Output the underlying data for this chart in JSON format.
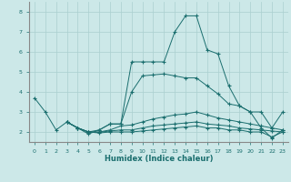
{
  "xlabel": "Humidex (Indice chaleur)",
  "xlim": [
    -0.5,
    23.5
  ],
  "ylim": [
    1.5,
    8.5
  ],
  "yticks": [
    2,
    3,
    4,
    5,
    6,
    7,
    8
  ],
  "xticks": [
    0,
    1,
    2,
    3,
    4,
    5,
    6,
    7,
    8,
    9,
    10,
    11,
    12,
    13,
    14,
    15,
    16,
    17,
    18,
    19,
    20,
    21,
    22,
    23
  ],
  "bg_color": "#cce8e8",
  "line_color": "#1a6e6e",
  "grid_color": "#aacfcf",
  "lines": [
    {
      "x": [
        0,
        1,
        2,
        3,
        4,
        5,
        6,
        7,
        8,
        9,
        10,
        11,
        12,
        13,
        14,
        15,
        16,
        17,
        18,
        19,
        20,
        21,
        22,
        23
      ],
      "y": [
        3.7,
        3.0,
        2.1,
        2.5,
        2.2,
        1.9,
        2.1,
        2.4,
        2.4,
        5.5,
        5.5,
        5.5,
        5.5,
        7.0,
        7.8,
        7.8,
        6.1,
        5.9,
        4.3,
        3.3,
        3.0,
        2.2,
        1.7,
        2.1
      ]
    },
    {
      "x": [
        3,
        4,
        5,
        6,
        7,
        8,
        9,
        10,
        11,
        12,
        13,
        14,
        15,
        16,
        17,
        18,
        19,
        20,
        21,
        22,
        23
      ],
      "y": [
        2.5,
        2.2,
        2.0,
        2.1,
        2.4,
        2.4,
        4.0,
        4.8,
        4.85,
        4.9,
        4.8,
        4.7,
        4.7,
        4.3,
        3.9,
        3.4,
        3.3,
        3.0,
        3.0,
        2.2,
        3.0
      ]
    },
    {
      "x": [
        3,
        4,
        5,
        6,
        7,
        8,
        9,
        10,
        11,
        12,
        13,
        14,
        15,
        16,
        17,
        18,
        19,
        20,
        21,
        22,
        23
      ],
      "y": [
        2.5,
        2.2,
        2.0,
        2.0,
        2.1,
        2.3,
        2.35,
        2.5,
        2.65,
        2.75,
        2.85,
        2.9,
        3.0,
        2.85,
        2.7,
        2.6,
        2.5,
        2.4,
        2.3,
        2.2,
        2.1
      ]
    },
    {
      "x": [
        3,
        4,
        5,
        6,
        7,
        8,
        9,
        10,
        11,
        12,
        13,
        14,
        15,
        16,
        17,
        18,
        19,
        20,
        21,
        22,
        23
      ],
      "y": [
        2.5,
        2.2,
        2.0,
        1.98,
        2.05,
        2.1,
        2.1,
        2.2,
        2.3,
        2.35,
        2.4,
        2.45,
        2.5,
        2.4,
        2.35,
        2.3,
        2.2,
        2.15,
        2.1,
        2.05,
        2.0
      ]
    },
    {
      "x": [
        3,
        4,
        5,
        6,
        7,
        8,
        9,
        10,
        11,
        12,
        13,
        14,
        15,
        16,
        17,
        18,
        19,
        20,
        21,
        22,
        23
      ],
      "y": [
        2.5,
        2.2,
        2.0,
        1.95,
        2.0,
        2.0,
        2.0,
        2.05,
        2.1,
        2.15,
        2.2,
        2.25,
        2.3,
        2.2,
        2.2,
        2.1,
        2.1,
        2.0,
        2.0,
        1.75,
        2.0
      ]
    }
  ]
}
